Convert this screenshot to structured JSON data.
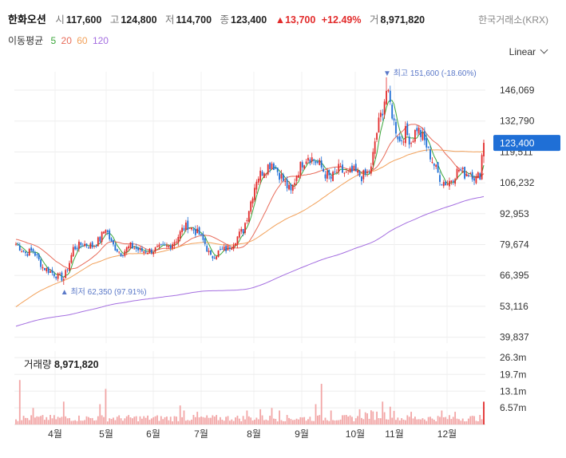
{
  "header": {
    "name": "한화오션",
    "open_label": "시",
    "open": "117,600",
    "high_label": "고",
    "high": "124,800",
    "low_label": "저",
    "low": "114,700",
    "close_label": "종",
    "close": "123,400",
    "change": "13,700",
    "change_pct": "+12.49%",
    "volume_label": "거",
    "volume": "8,971,820",
    "exchange": "한국거래소(KRX)"
  },
  "ma_legend": {
    "title": "이동평균",
    "p5": "5",
    "p20": "20",
    "p60": "60",
    "p120": "120"
  },
  "scale_mode": "Linear",
  "colors": {
    "up": "#e22b2b",
    "down": "#1f6fd6",
    "ma5": "#3aa63a",
    "ma20": "#e86c5a",
    "ma60": "#f2a15a",
    "ma120": "#a46ee0",
    "price_tag": "#1f6fd6",
    "volume": "#f2a6a6"
  },
  "chart_data": {
    "type": "candlestick",
    "price_axis_ticks": [
      "146,069",
      "132,790",
      "119,511",
      "106,232",
      "92,953",
      "79,674",
      "66,395",
      "53,116",
      "39,837"
    ],
    "price_ylim": [
      35000,
      162000
    ],
    "month_labels": [
      "4월",
      "5월",
      "6월",
      "7월",
      "8월",
      "9월",
      "10월",
      "11월",
      "12월"
    ],
    "current_price": "123,400",
    "high_marker": {
      "label": "최고",
      "value": "151,600",
      "pct": "(-18.60%)"
    },
    "low_marker": {
      "label": "최저",
      "value": "62,350",
      "pct": "(97.91%)"
    },
    "moving_averages": [
      "5",
      "20",
      "60",
      "120"
    ],
    "anchors": [
      [
        0,
        80000
      ],
      [
        5,
        76000
      ],
      [
        9,
        77000
      ],
      [
        14,
        70000
      ],
      [
        18,
        68000
      ],
      [
        22,
        66000
      ],
      [
        25,
        65000
      ],
      [
        28,
        72000
      ],
      [
        30,
        78000
      ],
      [
        35,
        80000
      ],
      [
        40,
        79000
      ],
      [
        44,
        82000
      ],
      [
        47,
        87000
      ],
      [
        50,
        80000
      ],
      [
        55,
        76000
      ],
      [
        60,
        79000
      ],
      [
        65,
        77000
      ],
      [
        70,
        77000
      ],
      [
        75,
        78000
      ],
      [
        80,
        79000
      ],
      [
        84,
        82000
      ],
      [
        87,
        86000
      ],
      [
        90,
        88000
      ],
      [
        93,
        86000
      ],
      [
        96,
        84000
      ],
      [
        99,
        80000
      ],
      [
        102,
        74000
      ],
      [
        107,
        77000
      ],
      [
        111,
        78000
      ],
      [
        115,
        82000
      ],
      [
        119,
        86000
      ],
      [
        122,
        95000
      ],
      [
        126,
        108000
      ],
      [
        130,
        112000
      ],
      [
        134,
        115000
      ],
      [
        138,
        110000
      ],
      [
        141,
        106000
      ],
      [
        144,
        102000
      ],
      [
        147,
        110000
      ],
      [
        150,
        115000
      ],
      [
        153,
        118000
      ],
      [
        156,
        116000
      ],
      [
        159,
        114000
      ],
      [
        162,
        110000
      ],
      [
        165,
        108000
      ],
      [
        169,
        112000
      ],
      [
        173,
        110000
      ],
      [
        177,
        111000
      ],
      [
        181,
        109000
      ],
      [
        184,
        110000
      ],
      [
        186,
        112000
      ],
      [
        188,
        124000
      ],
      [
        190,
        132000
      ],
      [
        192,
        138000
      ],
      [
        194,
        146000
      ],
      [
        196,
        140000
      ],
      [
        198,
        132000
      ],
      [
        201,
        124000
      ],
      [
        204,
        128000
      ],
      [
        207,
        124000
      ],
      [
        210,
        130000
      ],
      [
        214,
        124000
      ],
      [
        217,
        118000
      ],
      [
        220,
        112000
      ],
      [
        223,
        107000
      ],
      [
        226,
        106000
      ],
      [
        229,
        109000
      ],
      [
        232,
        112000
      ],
      [
        235,
        110000
      ],
      [
        238,
        111000
      ],
      [
        241,
        108000
      ],
      [
        243,
        110000
      ],
      [
        244,
        118000
      ],
      [
        245,
        123400
      ]
    ],
    "volume": {
      "ticks": [
        "26.3m",
        "19.7m",
        "13.1m",
        "6.57m"
      ],
      "last": "8,971,820",
      "max": 27000000,
      "spikes": [
        [
          2,
          17500000
        ],
        [
          9,
          6500000
        ],
        [
          25,
          9000000
        ],
        [
          44,
          8000000
        ],
        [
          47,
          14000000
        ],
        [
          86,
          7500000
        ],
        [
          88,
          5500000
        ],
        [
          95,
          5000000
        ],
        [
          121,
          5500000
        ],
        [
          128,
          6000000
        ],
        [
          134,
          6500000
        ],
        [
          138,
          5500000
        ],
        [
          157,
          8000000
        ],
        [
          160,
          16000000
        ],
        [
          165,
          5500000
        ],
        [
          180,
          6000000
        ],
        [
          192,
          9000000
        ],
        [
          196,
          7000000
        ],
        [
          207,
          5000000
        ],
        [
          223,
          5500000
        ],
        [
          230,
          5000000
        ],
        [
          245,
          8971820
        ]
      ]
    }
  }
}
